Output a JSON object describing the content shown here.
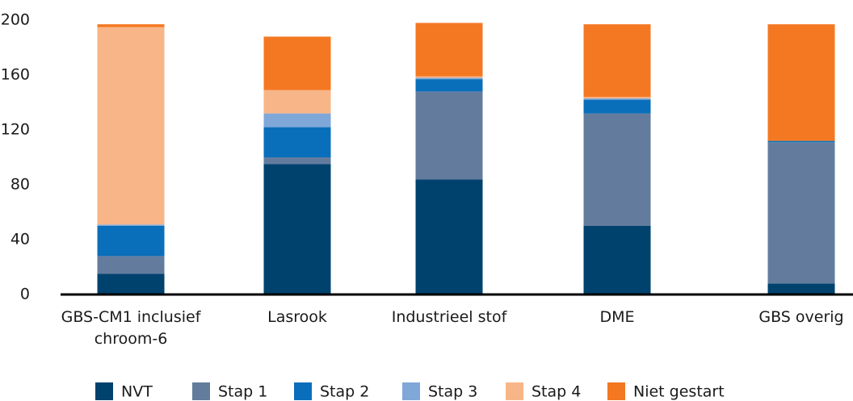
{
  "chart_data": {
    "type": "stacked_bar",
    "categories": [
      "GBS-CM1 inclusief chroom-6",
      "Lasrook",
      "Industrieel stof",
      "DME",
      "GBS overig"
    ],
    "series": [
      {
        "name": "NVT",
        "color": "#00426e",
        "values": [
          15,
          95,
          84,
          50,
          8
        ]
      },
      {
        "name": "Stap 1",
        "color": "#637c9e",
        "values": [
          13,
          5,
          64,
          82,
          103
        ]
      },
      {
        "name": "Stap 2",
        "color": "#0a6fba",
        "values": [
          22,
          22,
          9,
          10,
          1
        ]
      },
      {
        "name": "Stap 3",
        "color": "#7fa7d8",
        "values": [
          1,
          10,
          1,
          1,
          0
        ]
      },
      {
        "name": "Stap 4",
        "color": "#f8b588",
        "values": [
          144,
          17,
          1,
          1,
          0
        ]
      },
      {
        "name": "Niet gestart",
        "color": "#f47822",
        "values": [
          2,
          39,
          39,
          53,
          85
        ]
      }
    ],
    "ylim": [
      0,
      200
    ],
    "yticks": [
      0,
      40,
      80,
      120,
      160,
      200
    ],
    "grid": false,
    "legend": "bottom"
  }
}
